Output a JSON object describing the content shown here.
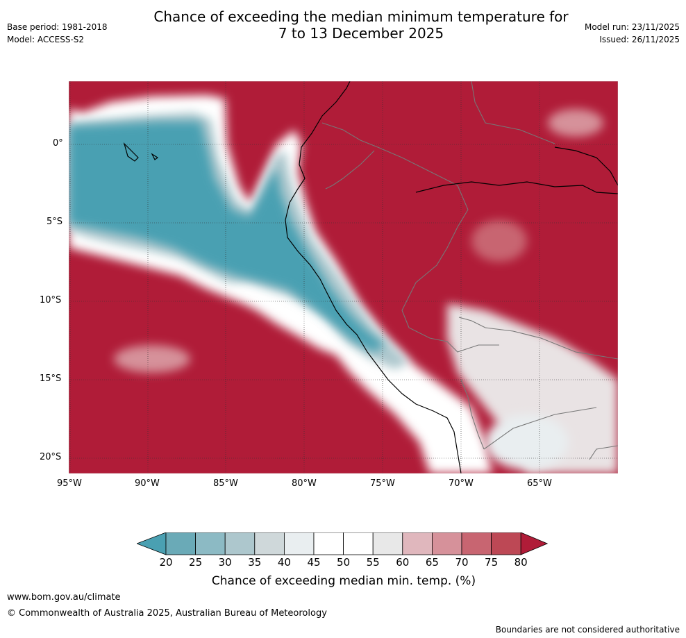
{
  "header": {
    "base_period": "Base period: 1981-2018",
    "model": "Model: ACCESS-S2",
    "title_line1": "Chance of exceeding the median minimum temperature for",
    "title_line2": "7 to 13 December 2025",
    "model_run": "Model run: 23/11/2025",
    "issued": "Issued: 26/11/2025"
  },
  "map": {
    "lat_labels": [
      "0°",
      "5°S",
      "10°S",
      "15°S",
      "20°S"
    ],
    "lon_labels": [
      "95°W",
      "90°W",
      "85°W",
      "80°W",
      "75°W",
      "70°W",
      "65°W"
    ],
    "colors": {
      "high": "#b01c38",
      "low": "#4aa0b2",
      "white": "#ffffff",
      "coast": "#000000",
      "border": "#777777"
    }
  },
  "colorbar": {
    "ticks": [
      "20",
      "25",
      "30",
      "35",
      "40",
      "45",
      "50",
      "55",
      "60",
      "65",
      "70",
      "75",
      "80"
    ],
    "colors": [
      "#4aa0b2",
      "#6aaab7",
      "#8cbac4",
      "#adc7cd",
      "#cfd8da",
      "#e9eef0",
      "#ffffff",
      "#ffffff",
      "#e8e8e8",
      "#e0b7bd",
      "#d6919a",
      "#c86571",
      "#bd4855",
      "#b01c38"
    ],
    "label": "Chance of exceeding median min. temp. (%)"
  },
  "footer": {
    "url": "www.bom.gov.au/climate",
    "copyright": "© Commonwealth of Australia 2025, Australian Bureau of Meteorology",
    "disclaimer": "Boundaries are not considered authoritative"
  }
}
